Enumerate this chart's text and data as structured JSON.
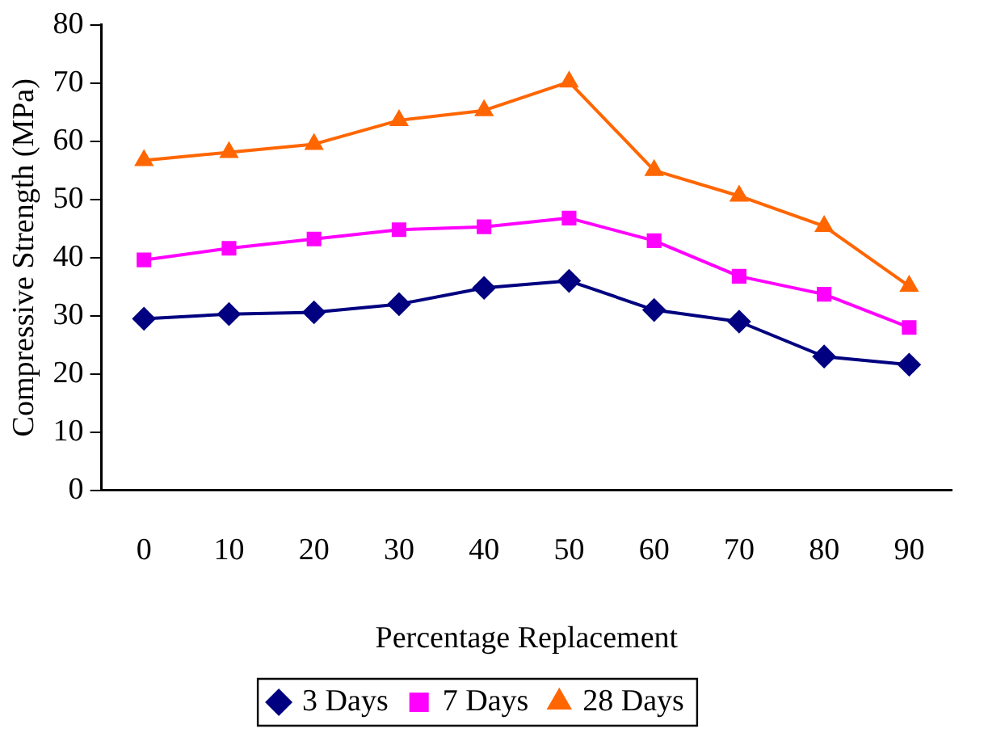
{
  "chart_data": {
    "type": "line",
    "xlabel": "Percentage Replacement",
    "ylabel": "Compressive Strength (MPa)",
    "categories": [
      "0",
      "10",
      "20",
      "30",
      "40",
      "50",
      "60",
      "70",
      "80",
      "90"
    ],
    "ylim": [
      0,
      80
    ],
    "yticks": [
      0,
      10,
      20,
      30,
      40,
      50,
      60,
      70,
      80
    ],
    "grid": false,
    "legend": "bottom",
    "line_style": "solid",
    "series": [
      {
        "name": "3 Days",
        "color": "#000080",
        "marker": "diamond",
        "values": [
          29.5,
          30.3,
          30.6,
          32,
          34.8,
          36,
          31,
          29,
          23,
          21.6
        ]
      },
      {
        "name": "7 Days",
        "color": "#ff00ff",
        "marker": "square",
        "values": [
          39.6,
          41.6,
          43.2,
          44.8,
          45.3,
          46.8,
          42.9,
          36.8,
          33.7,
          28
        ]
      },
      {
        "name": "28 Days",
        "color": "#ff6600",
        "marker": "triangle",
        "values": [
          56.7,
          58.1,
          59.5,
          63.6,
          65.3,
          70.2,
          55,
          50.6,
          45.4,
          35.1
        ]
      }
    ]
  }
}
